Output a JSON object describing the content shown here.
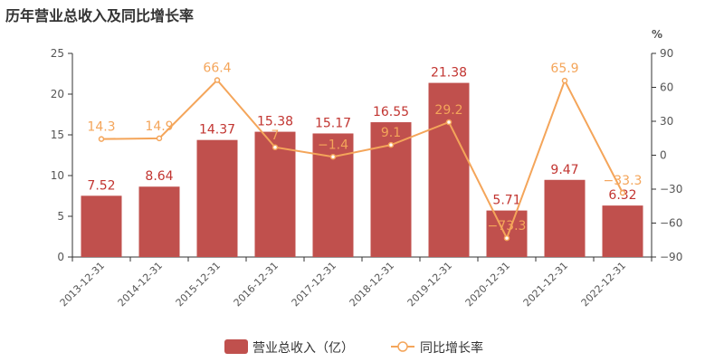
{
  "chart_data": {
    "type": "bar",
    "title": "历年营业总收入及同比增长率",
    "categories": [
      "2013-12-31",
      "2014-12-31",
      "2015-12-31",
      "2016-12-31",
      "2017-12-31",
      "2018-12-31",
      "2019-12-31",
      "2020-12-31",
      "2021-12-31",
      "2022-12-31"
    ],
    "series": [
      {
        "name": "营业总收入（亿）",
        "type": "bar",
        "axis": "left",
        "color": "#c0504d",
        "values": [
          7.52,
          8.64,
          14.37,
          15.38,
          15.17,
          16.55,
          21.38,
          5.71,
          9.47,
          6.32
        ],
        "labels": [
          "7.52",
          "8.64",
          "14.37",
          "15.38",
          "15.17",
          "16.55",
          "21.38",
          "5.71",
          "9.47",
          "6.32"
        ]
      },
      {
        "name": "同比增长率",
        "type": "line",
        "axis": "right",
        "color": "#f4a55a",
        "values": [
          14.3,
          14.9,
          66.4,
          7,
          -1.4,
          9.1,
          29.2,
          -73.3,
          65.9,
          -33.3
        ],
        "labels": [
          "14.3",
          "14.9",
          "66.4",
          "7",
          "−1.4",
          "9.1",
          "29.2",
          "−73.3",
          "65.9",
          "−33.3"
        ]
      }
    ],
    "y_left": {
      "min": 0,
      "max": 25,
      "ticks": [
        "0",
        "5",
        "10",
        "15",
        "20",
        "25"
      ]
    },
    "y_right": {
      "min": -90,
      "max": 90,
      "unit": "%",
      "ticks": [
        "−90",
        "−60",
        "−30",
        "0",
        "30",
        "60",
        "90"
      ]
    },
    "grid": false,
    "legend_position": "bottom-center"
  }
}
